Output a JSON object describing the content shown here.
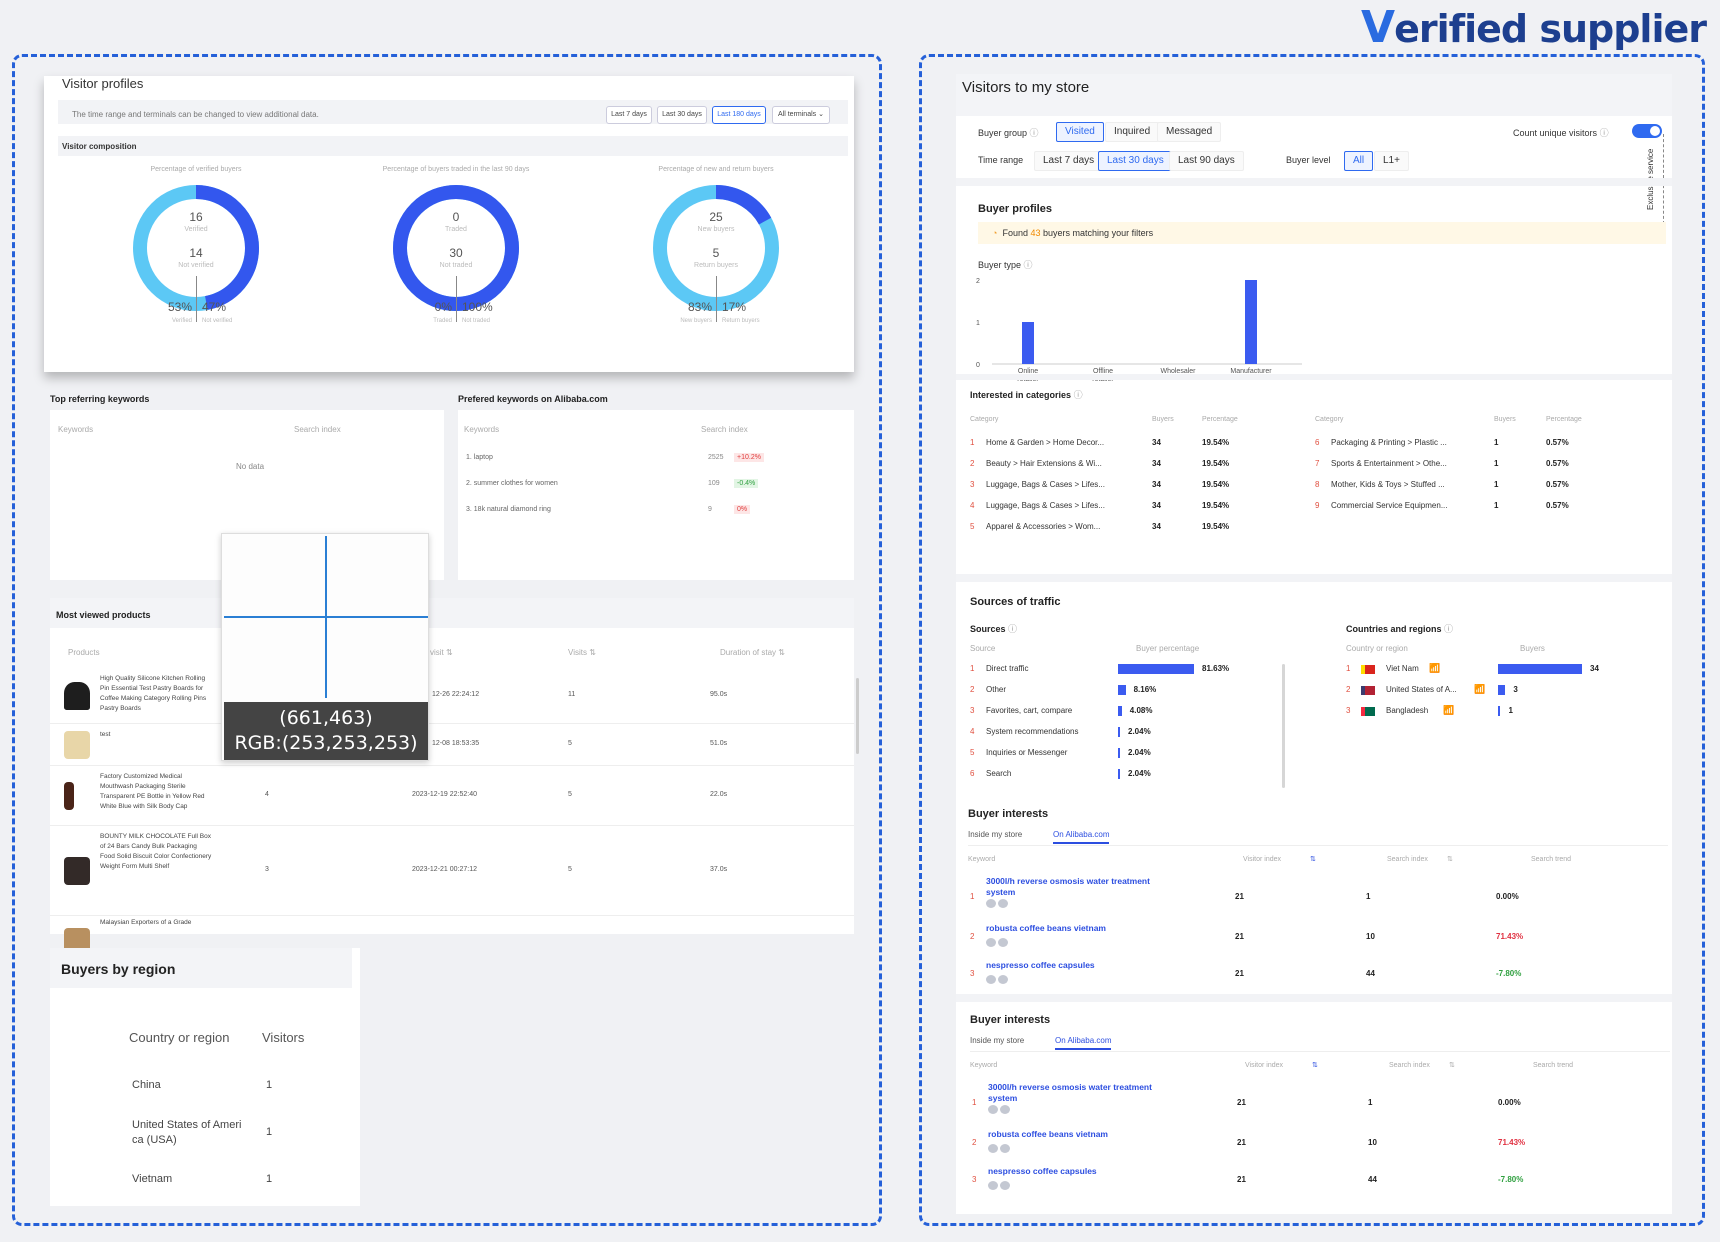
{
  "brand": {
    "v": "V",
    "rest": "erified supplier"
  },
  "left": {
    "visitor_profiles": {
      "title": "Visitor profiles",
      "note": "The time range and terminals can be changed to view additional data.",
      "ranges": [
        "Last 7 days",
        "Last 30 days",
        "Last 180 days"
      ],
      "selected_range": "Last 180 days",
      "terminals": "All terminals",
      "composition_title": "Visitor composition",
      "donuts": [
        {
          "title": "Percentage of verified buyers",
          "top_value": "16",
          "top_label": "Verified",
          "bottom_value": "14",
          "bottom_label": "Not verified",
          "left_pct": "53%",
          "left_label": "Verified",
          "right_pct": "47%",
          "right_label": "Not verified",
          "blue_fraction": 0.47
        },
        {
          "title": "Percentage of buyers traded in the last 90 days",
          "top_value": "0",
          "top_label": "Traded",
          "bottom_value": "30",
          "bottom_label": "Not traded",
          "left_pct": "0%",
          "left_label": "Traded",
          "right_pct": "100%",
          "right_label": "Not traded",
          "blue_fraction": 1.0
        },
        {
          "title": "Percentage of new and return buyers",
          "top_value": "25",
          "top_label": "New buyers",
          "bottom_value": "5",
          "bottom_label": "Return buyers",
          "left_pct": "83%",
          "left_label": "New buyers",
          "right_pct": "17%",
          "right_label": "Return buyers",
          "blue_fraction": 0.17
        }
      ]
    },
    "top_keywords": {
      "title": "Top referring keywords",
      "col1": "Keywords",
      "col2": "Search index",
      "empty": "No data"
    },
    "preferred_keywords": {
      "title": "Prefered keywords on Alibaba.com",
      "col1": "Keywords",
      "col2": "Search index",
      "rows": [
        {
          "kw": "1. laptop",
          "index": "2525",
          "change": "+10.2%",
          "dir": "up"
        },
        {
          "kw": "2. summer clothes for women",
          "index": "109",
          "change": "-0.4%",
          "dir": "down"
        },
        {
          "kw": "3. 18k natural diamond ring",
          "index": "9",
          "change": "0%",
          "dir": "up"
        }
      ]
    },
    "most_viewed": {
      "title": "Most viewed products",
      "cols": [
        "Products",
        "visit",
        "Visits",
        "Duration of stay"
      ],
      "rows": [
        {
          "name": "High Quality Silicone Kitchen Rolling Pin Essential Test Pastry Boards for Coffee Making Category Rolling Pins Pastry Boards",
          "views": "",
          "last": "12-26 22:24:12",
          "visits": "11",
          "dur": "95.0s"
        },
        {
          "name": "test",
          "views": "",
          "last": "12-08 18:53:35",
          "visits": "5",
          "dur": "51.0s"
        },
        {
          "name": "Factory Customized Medical Mouthwash Packaging Sterile Transparent PE Bottle in Yellow Red White Blue with Silk Body Cap",
          "views": "4",
          "last": "2023-12-19 22:52:40",
          "visits": "5",
          "dur": "22.0s"
        },
        {
          "name": "BOUNTY MILK CHOCOLATE Full Box of 24 Bars Candy Bulk Packaging Food Solid Biscuit Color Confectionery Weight Form Multi Shelf",
          "views": "3",
          "last": "2023-12-21 00:27:12",
          "visits": "5",
          "dur": "37.0s"
        },
        {
          "name": "Malaysian Exporters of a Grade",
          "views": "",
          "last": "",
          "visits": "",
          "dur": ""
        }
      ]
    },
    "tooltip": {
      "coords": "(661,463)",
      "rgb": "RGB:(253,253,253)"
    },
    "buyers_by_region": {
      "title": "Buyers by region",
      "col1": "Country or region",
      "col2": "Visitors",
      "rows": [
        {
          "c": "China",
          "v": "1"
        },
        {
          "c": "United States of Ameri",
          "c2": "ca (USA)",
          "v": "1"
        },
        {
          "c": "Vietnam",
          "v": "1"
        }
      ]
    }
  },
  "right": {
    "title": "Visitors to my store",
    "buyer_group_label": "Buyer group",
    "groups": [
      "Visited",
      "Inquired",
      "Messaged"
    ],
    "count_unique": "Count unique visitors",
    "time_range_label": "Time range",
    "times": [
      "Last 7 days",
      "Last 30 days",
      "Last 90 days"
    ],
    "buyer_level_label": "Buyer level",
    "levels": [
      "All",
      "L1+"
    ],
    "exclusive": "Exclusive service",
    "buyer_profiles": "Buyer profiles",
    "found": {
      "pre": "Found",
      "count": "43",
      "post": "buyers matching your filters"
    },
    "buyer_type": "Buyer type",
    "chart_data": {
      "type": "bar",
      "categories": [
        "Online retailer",
        "Offline retailer",
        "Wholesaler",
        "Manufacturer"
      ],
      "values": [
        1,
        0,
        0,
        2
      ],
      "ylim": [
        0,
        2
      ],
      "yticks": [
        "2",
        "1",
        "0"
      ],
      "xlabel_lines": [
        [
          "Online",
          "retailer"
        ],
        [
          "Offline",
          "retailer"
        ],
        [
          "Wholesaler"
        ],
        [
          "Manufacturer"
        ]
      ]
    },
    "interested": {
      "title": "Interested in categories",
      "cols": [
        "Category",
        "Buyers",
        "Percentage"
      ],
      "left": [
        {
          "n": "1",
          "c": "Home & Garden > Home Decor...",
          "b": "34",
          "p": "19.54%"
        },
        {
          "n": "2",
          "c": "Beauty > Hair Extensions & Wi...",
          "b": "34",
          "p": "19.54%"
        },
        {
          "n": "3",
          "c": "Luggage, Bags & Cases > Lifes...",
          "b": "34",
          "p": "19.54%"
        },
        {
          "n": "4",
          "c": "Luggage, Bags & Cases > Lifes...",
          "b": "34",
          "p": "19.54%"
        },
        {
          "n": "5",
          "c": "Apparel & Accessories > Wom...",
          "b": "34",
          "p": "19.54%"
        }
      ],
      "right": [
        {
          "n": "6",
          "c": "Packaging & Printing > Plastic ...",
          "b": "1",
          "p": "0.57%"
        },
        {
          "n": "7",
          "c": "Sports & Entertainment > Othe...",
          "b": "1",
          "p": "0.57%"
        },
        {
          "n": "8",
          "c": "Mother, Kids & Toys > Stuffed ...",
          "b": "1",
          "p": "0.57%"
        },
        {
          "n": "9",
          "c": "Commercial Service Equipmen...",
          "b": "1",
          "p": "0.57%"
        }
      ]
    },
    "traffic": {
      "title": "Sources of traffic",
      "sources_label": "Sources",
      "cols": [
        "Source",
        "Buyer percentage"
      ],
      "rows": [
        {
          "n": "1",
          "s": "Direct traffic",
          "p": "81.63%",
          "v": 81.63
        },
        {
          "n": "2",
          "s": "Other",
          "p": "8.16%",
          "v": 8.16
        },
        {
          "n": "3",
          "s": "Favorites, cart, compare",
          "p": "4.08%",
          "v": 4.08
        },
        {
          "n": "4",
          "s": "System recommendations",
          "p": "2.04%",
          "v": 2.04
        },
        {
          "n": "5",
          "s": "Inquiries or Messenger",
          "p": "2.04%",
          "v": 2.04
        },
        {
          "n": "6",
          "s": "Search",
          "p": "2.04%",
          "v": 2.04
        }
      ],
      "countries_label": "Countries and regions",
      "ccols": [
        "Country or region",
        "Buyers"
      ],
      "countries": [
        {
          "n": "1",
          "c": "Viet Nam",
          "b": "34",
          "v": 34
        },
        {
          "n": "2",
          "c": "United States of A...",
          "b": "3",
          "v": 3
        },
        {
          "n": "3",
          "c": "Bangladesh",
          "b": "1",
          "v": 1
        }
      ]
    },
    "interests": [
      {
        "title": "Buyer interests",
        "tabs": [
          "Inside my store",
          "On Alibaba.com"
        ],
        "cols": [
          "Keyword",
          "Visitor index",
          "Search index",
          "Search trend"
        ],
        "rows": [
          {
            "n": "1",
            "k1": "3000l/h reverse osmosis water treatment",
            "k2": "system",
            "vi": "21",
            "si": "1",
            "tr": "0.00%"
          },
          {
            "n": "2",
            "k1": "robusta coffee beans vietnam",
            "k2": "",
            "vi": "21",
            "si": "10",
            "tr": "71.43%"
          },
          {
            "n": "3",
            "k1": "nespresso coffee capsules",
            "k2": "",
            "vi": "21",
            "si": "44",
            "tr": "-7.80%"
          }
        ]
      },
      {
        "title": "Buyer interests",
        "tabs": [
          "Inside my store",
          "On Alibaba.com"
        ],
        "cols": [
          "Keyword",
          "Visitor index",
          "Search index",
          "Search trend"
        ],
        "rows": [
          {
            "n": "1",
            "k1": "3000l/h reverse osmosis water treatment",
            "k2": "system",
            "vi": "21",
            "si": "1",
            "tr": "0.00%"
          },
          {
            "n": "2",
            "k1": "robusta coffee beans vietnam",
            "k2": "",
            "vi": "21",
            "si": "10",
            "tr": "71.43%"
          },
          {
            "n": "3",
            "k1": "nespresso coffee capsules",
            "k2": "",
            "vi": "21",
            "si": "44",
            "tr": "-7.80%"
          }
        ]
      }
    ]
  }
}
